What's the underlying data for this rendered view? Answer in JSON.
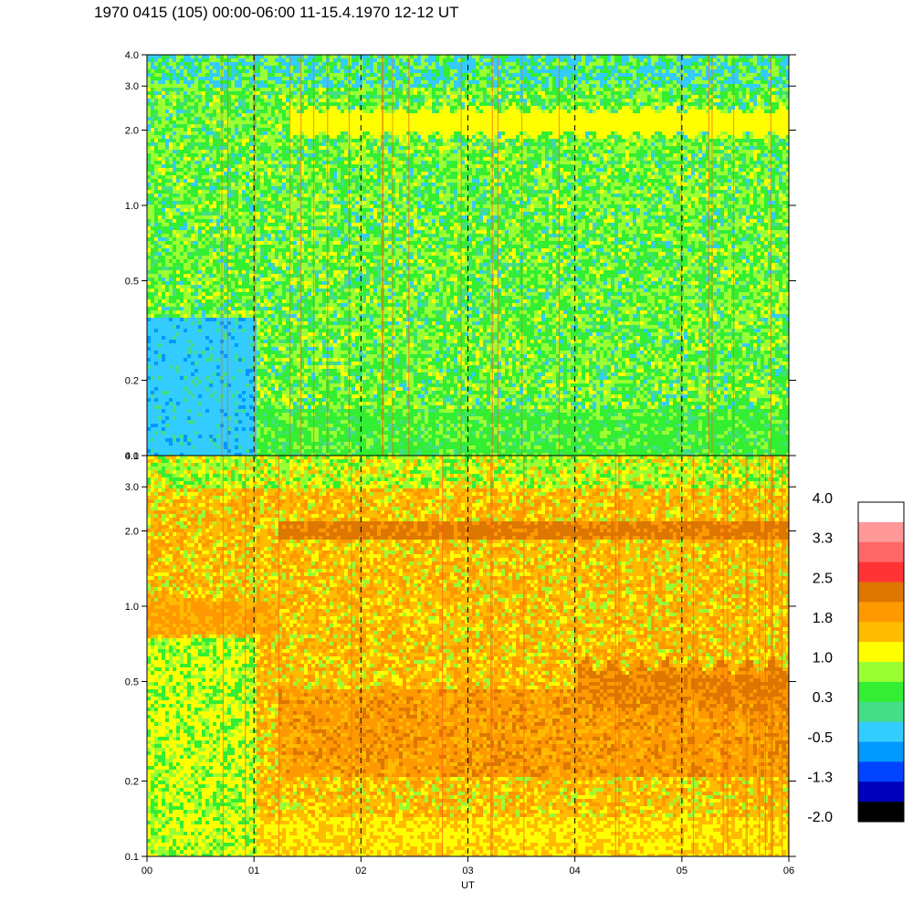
{
  "title": "1970 0415 (105) 00:00-06:00 11-15.4.1970  12-12 UT",
  "chart_data": {
    "type": "heatmap",
    "xlabel": "UT",
    "x_ticks": [
      "00",
      "01",
      "02",
      "03",
      "04",
      "05",
      "06"
    ],
    "xlim": [
      0,
      6
    ],
    "dashed_vertical_lines_at_x": [
      1,
      2,
      3,
      4,
      5
    ],
    "y_scale": "log",
    "ylim": [
      0.1,
      4.0
    ],
    "panels": [
      {
        "y_ticks": [
          "4.0",
          "3.0",
          "2.0",
          "1.0",
          "0.5",
          "0.2",
          "0.1"
        ],
        "y_values": [
          4.0,
          3.0,
          2.0,
          1.0,
          0.5,
          0.2,
          0.1
        ],
        "dominant_colors": [
          "#33ee33",
          "#99ff33",
          "#33ccff",
          "#ffff00"
        ]
      },
      {
        "y_ticks": [
          "4.0",
          "3.0",
          "2.0",
          "1.0",
          "0.5",
          "0.2",
          "0.1"
        ],
        "y_values": [
          4.0,
          3.0,
          2.0,
          1.0,
          0.5,
          0.2,
          0.1
        ],
        "dominant_colors": [
          "#ffbb00",
          "#ff9900",
          "#ffff00",
          "#dd7700"
        ]
      }
    ],
    "colorbar": {
      "labels": [
        "4.0",
        "3.3",
        "2.5",
        "1.8",
        "1.0",
        "0.3",
        "-0.5",
        "-1.3",
        "-2.0"
      ],
      "colors_top_to_bottom": [
        "#ffffff",
        "#ff9999",
        "#ff6666",
        "#ff3333",
        "#dd7700",
        "#ff9900",
        "#ffbb00",
        "#ffff00",
        "#99ff33",
        "#33ee33",
        "#44dd88",
        "#33ccff",
        "#0099ff",
        "#0044ff",
        "#0000bb",
        "#000000"
      ]
    }
  }
}
